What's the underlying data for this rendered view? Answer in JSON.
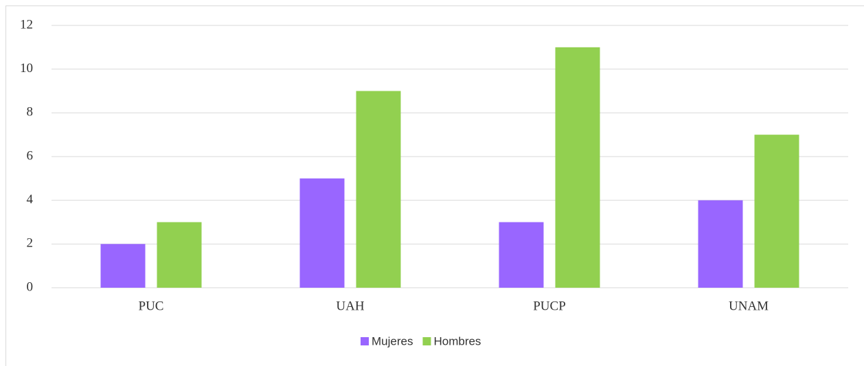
{
  "chart_data": {
    "type": "bar",
    "categories": [
      "PUC",
      "UAH",
      "PUCP",
      "UNAM"
    ],
    "series": [
      {
        "name": "Mujeres",
        "color": "#9966ff",
        "values": [
          2,
          5,
          3,
          4
        ]
      },
      {
        "name": "Hombres",
        "color": "#92d050",
        "values": [
          3,
          9,
          11,
          7
        ]
      }
    ],
    "ylim": [
      0,
      12
    ],
    "yticks": [
      0,
      2,
      4,
      6,
      8,
      10,
      12
    ],
    "grid": true,
    "legend": "bottom"
  }
}
